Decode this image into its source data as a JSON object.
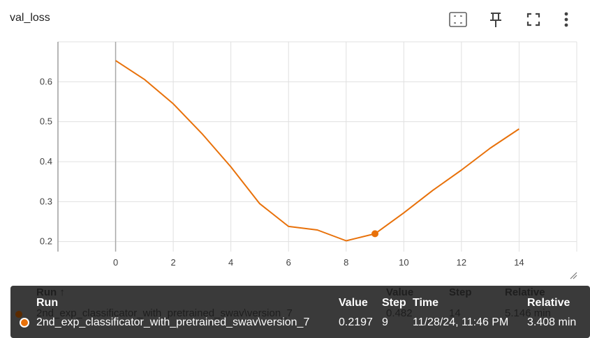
{
  "card": {
    "title": "val_loss"
  },
  "toolbar": {
    "icons": [
      "fit-domain-icon",
      "pin-icon",
      "fullscreen-icon",
      "more-vert-icon"
    ]
  },
  "colors": {
    "series": "#e8710a",
    "grid": "#e0e0e0",
    "tooltip_bg": "#3a3a3a"
  },
  "chart_data": {
    "type": "line",
    "title": "val_loss",
    "xlabel": "",
    "ylabel": "",
    "xlim": [
      -2,
      16
    ],
    "ylim": [
      0.175,
      0.7
    ],
    "x_ticks": [
      0,
      2,
      4,
      6,
      8,
      10,
      12,
      14
    ],
    "y_ticks": [
      0.2,
      0.3,
      0.4,
      0.5,
      0.6
    ],
    "grid": true,
    "series": [
      {
        "name": "2nd_exp_classificator_with_pretrained_swav\\version_7",
        "x": [
          0,
          1,
          2,
          3,
          4,
          5,
          6,
          7,
          8,
          9,
          10,
          11,
          12,
          13,
          14
        ],
        "y": [
          0.653,
          0.606,
          0.545,
          0.47,
          0.387,
          0.295,
          0.238,
          0.229,
          0.202,
          0.2197,
          0.272,
          0.328,
          0.379,
          0.434,
          0.482
        ]
      }
    ],
    "highlight": {
      "x": 9,
      "y": 0.2197
    }
  },
  "tooltip": {
    "ghost": {
      "run_header": "Run ↑",
      "value_header": "Value",
      "step_header": "Step",
      "relative_header": "Relative",
      "run": "2nd_exp_classificator_with_pretrained_swav\\version_7",
      "value": "0.482",
      "step": "14",
      "relative": "5.146 min"
    },
    "headers": {
      "run": "Run",
      "value": "Value",
      "step": "Step",
      "time": "Time",
      "relative": "Relative"
    },
    "row": {
      "run": "2nd_exp_classificator_with_pretrained_swav\\version_7",
      "value": "0.2197",
      "step": "9",
      "time": "11/28/24, 11:46 PM",
      "relative": "3.408 min"
    }
  }
}
